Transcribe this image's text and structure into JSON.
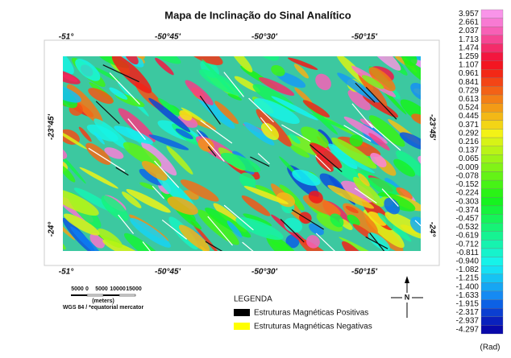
{
  "title": "Mapa de Inclinação do Sinal Analítico",
  "map": {
    "top_labels": [
      "-51°",
      "-50°45'",
      "-50°30'",
      "-50°15'"
    ],
    "bottom_labels": [
      "-51°",
      "-50°45'",
      "-50°30'",
      "-50°15'"
    ],
    "left_labels": [
      "-23°45'",
      "-24°"
    ],
    "right_labels": [
      "-23°45'",
      "-24°"
    ]
  },
  "color_scale": {
    "labels": [
      "3.957",
      "2.661",
      "2.037",
      "1.713",
      "1.474",
      "1.259",
      "1.107",
      "0.961",
      "0.841",
      "0.729",
      "0.613",
      "0.524",
      "0.445",
      "0.371",
      "0.292",
      "0.216",
      "0.137",
      "0.065",
      "-0.009",
      "-0.078",
      "-0.152",
      "-0.224",
      "-0.303",
      "-0.374",
      "-0.457",
      "-0.532",
      "-0.619",
      "-0.712",
      "-0.811",
      "-0.940",
      "-1.082",
      "-1.215",
      "-1.400",
      "-1.633",
      "-1.915",
      "-2.317",
      "-2.937",
      "-4.297"
    ],
    "unit": "(Rad)"
  },
  "scale_bar": {
    "labels": [
      "5000",
      "0",
      "5000",
      "10000",
      "15000"
    ],
    "unit": "(meters)",
    "projection": "WGS 84 / *equatorial mercator"
  },
  "legend": {
    "title": "LEGENDA",
    "items": [
      "Estruturas Magnéticas Positivas",
      "Estruturas Magnéticas Negativas"
    ]
  },
  "north": "N"
}
